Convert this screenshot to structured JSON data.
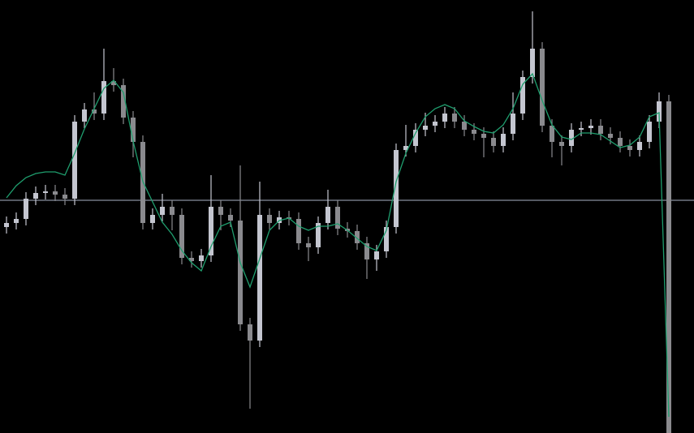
{
  "chart_data": {
    "type": "candlestick",
    "ylim": [
      0,
      534
    ],
    "up_color": "#c4c6d0",
    "down_color": "#8a8a8e",
    "background": "#000000",
    "level": 287,
    "level_color": "#a9b2c3",
    "open": [
      254,
      259,
      264,
      289,
      296,
      298,
      294,
      289,
      384,
      399,
      394,
      434,
      429,
      389,
      359,
      259,
      269,
      279,
      269,
      216,
      212,
      219,
      279,
      269,
      262,
      134,
      114,
      269,
      259,
      266,
      264,
      234,
      229,
      259,
      279,
      252,
      249,
      234,
      214,
      224,
      254,
      349,
      354,
      374,
      379,
      384,
      394,
      384,
      374,
      369,
      364,
      354,
      369,
      394,
      439,
      474,
      379,
      359,
      354,
      374,
      376,
      379,
      369,
      364,
      354,
      349,
      359,
      384,
      409
    ],
    "high": [
      267,
      272,
      297,
      304,
      306,
      306,
      302,
      392,
      407,
      420,
      474,
      450,
      437,
      397,
      367,
      277,
      295,
      287,
      277,
      224,
      227,
      318,
      287,
      277,
      330,
      142,
      310,
      277,
      274,
      274,
      272,
      242,
      267,
      300,
      287,
      260,
      257,
      242,
      232,
      262,
      357,
      380,
      382,
      395,
      392,
      402,
      402,
      392,
      382,
      377,
      372,
      377,
      420,
      447,
      520,
      482,
      387,
      367,
      382,
      384,
      387,
      387,
      377,
      372,
      362,
      367,
      392,
      420,
      417
    ],
    "low": [
      246,
      251,
      256,
      281,
      288,
      286,
      281,
      281,
      376,
      386,
      386,
      421,
      381,
      340,
      251,
      251,
      261,
      250,
      208,
      204,
      204,
      211,
      250,
      254,
      126,
      30,
      106,
      251,
      251,
      256,
      226,
      212,
      221,
      251,
      244,
      241,
      226,
      190,
      200,
      216,
      246,
      341,
      346,
      366,
      371,
      376,
      376,
      366,
      361,
      340,
      346,
      346,
      361,
      386,
      431,
      371,
      340,
      330,
      346,
      366,
      368,
      361,
      356,
      346,
      341,
      341,
      351,
      376,
      0
    ],
    "close": [
      259,
      264,
      289,
      296,
      298,
      294,
      289,
      384,
      399,
      394,
      434,
      429,
      389,
      359,
      259,
      269,
      279,
      269,
      216,
      212,
      219,
      279,
      269,
      262,
      134,
      114,
      269,
      259,
      266,
      264,
      234,
      229,
      259,
      279,
      252,
      249,
      234,
      214,
      224,
      254,
      349,
      354,
      374,
      379,
      384,
      394,
      384,
      374,
      369,
      364,
      354,
      369,
      394,
      439,
      474,
      379,
      359,
      354,
      374,
      376,
      379,
      369,
      364,
      354,
      349,
      359,
      384,
      409,
      0
    ],
    "series": [
      {
        "color": "#1f9e6e",
        "values": [
          290,
          305,
          315,
          320,
          322,
          322,
          318,
          345,
          375,
          400,
          425,
          435,
          420,
          360,
          310,
          285,
          260,
          245,
          225,
          210,
          200,
          230,
          255,
          260,
          210,
          180,
          215,
          250,
          262,
          265,
          255,
          250,
          255,
          255,
          258,
          250,
          240,
          230,
          225,
          250,
          310,
          345,
          370,
          390,
          400,
          405,
          400,
          385,
          378,
          372,
          370,
          380,
          400,
          430,
          443,
          410,
          380,
          365,
          362,
          370,
          370,
          368,
          360,
          352,
          355,
          365,
          390,
          395,
          20
        ]
      }
    ]
  }
}
